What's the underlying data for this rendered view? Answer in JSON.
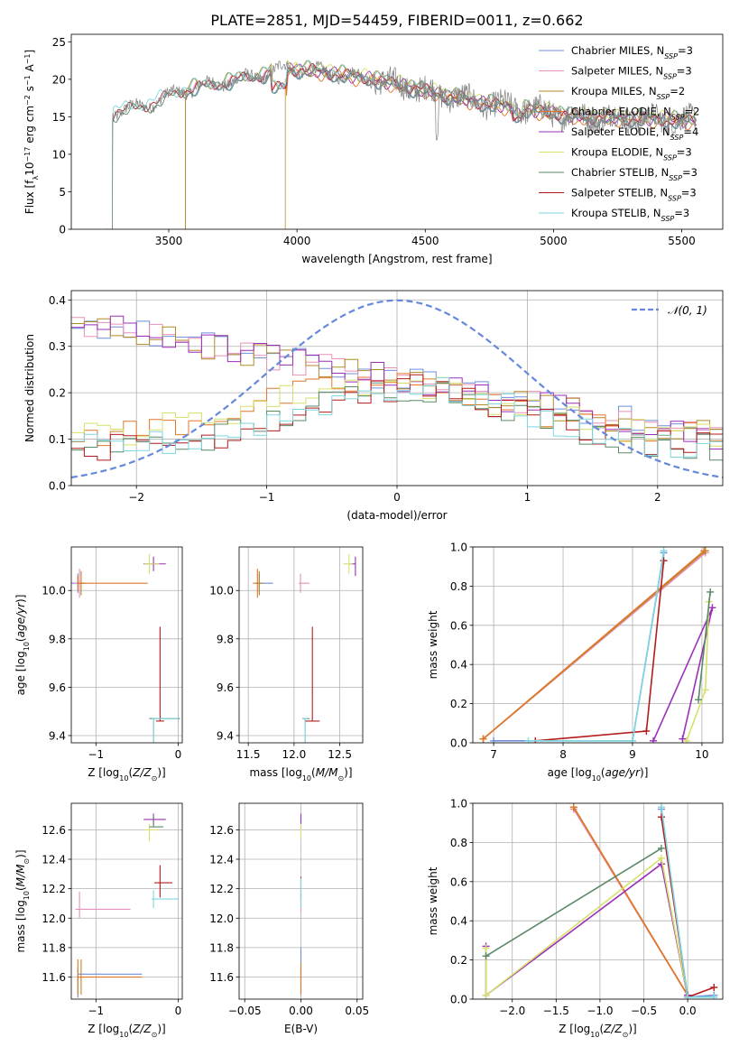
{
  "figure_title": "PLATE=2851, MJD=54459, FIBERID=0011, z=0.662",
  "colors": {
    "Chabrier MILES": "#6f8fdb",
    "Salpeter MILES": "#e590b8",
    "Kroupa MILES": "#b48a28",
    "Chabrier ELODIE": "#e2772a",
    "Salpeter ELODIE": "#9b2fb8",
    "Kroupa ELODIE": "#d6e06a",
    "Chabrier STELIB": "#5a8a68",
    "Salpeter STELIB": "#b21c1c",
    "Kroupa STELIB": "#7fd6df",
    "data": "#808080",
    "gaussian": "#6688dd"
  },
  "chart_data": [
    {
      "id": "spectrum",
      "type": "line",
      "xlabel": "wavelength [Angstrom, rest frame]",
      "ylabel": "Flux [f_λ10^-17 erg cm^-2 s^-1 A^-1]",
      "xlim": [
        3120,
        5660
      ],
      "ylim": [
        0,
        26
      ],
      "xticks": [
        3500,
        4000,
        4500,
        5000,
        5500
      ],
      "yticks": [
        0,
        5,
        10,
        15,
        20,
        25
      ],
      "grid": false,
      "legend_position": "top-right",
      "legend": [
        {
          "name": "Chabrier MILES",
          "nssp": "3"
        },
        {
          "name": "Salpeter MILES",
          "nssp": "3"
        },
        {
          "name": "Kroupa MILES",
          "nssp": "2"
        },
        {
          "name": "Chabrier ELODIE",
          "nssp": "2"
        },
        {
          "name": "Salpeter ELODIE",
          "nssp": "4"
        },
        {
          "name": "Kroupa ELODIE",
          "nssp": "3"
        },
        {
          "name": "Chabrier STELIB",
          "nssp": "3"
        },
        {
          "name": "Salpeter STELIB",
          "nssp": "3"
        },
        {
          "name": "Kroupa STELIB",
          "nssp": "3"
        }
      ],
      "model_starts": {
        "STELIB": 3280,
        "MILES": 3565,
        "ELODIE": 3955
      },
      "continuum": [
        [
          3280,
          15.5
        ],
        [
          3350,
          16
        ],
        [
          3450,
          17
        ],
        [
          3550,
          18.5
        ],
        [
          3700,
          19.5
        ],
        [
          3850,
          20.5
        ],
        [
          3950,
          21.5
        ],
        [
          4100,
          21
        ],
        [
          4300,
          20
        ],
        [
          4500,
          18.5
        ],
        [
          4700,
          17
        ],
        [
          4900,
          16
        ],
        [
          5100,
          15
        ],
        [
          5300,
          14.8
        ],
        [
          5550,
          14.5
        ]
      ]
    },
    {
      "id": "residuals",
      "type": "line",
      "xlabel": "(data-model)/error",
      "ylabel": "Normed distribution",
      "xlim": [
        -2.5,
        2.5
      ],
      "ylim": [
        0,
        0.42
      ],
      "xticks": [
        -2,
        -1,
        0,
        1,
        2
      ],
      "yticks": [
        0.0,
        0.1,
        0.2,
        0.3,
        0.4
      ],
      "grid": true,
      "legend_position": "top-right",
      "gaussian_label": "𝒩(0, 1)",
      "bin_width": 0.1
    },
    {
      "id": "age-vs-z",
      "type": "scatter",
      "xlabel": "Z [log10(Z/Z⊙)]",
      "ylabel": "age [log10(age/yr)]",
      "xlim": [
        -1.3,
        0.05
      ],
      "ylim": [
        9.37,
        10.18
      ],
      "xticks": [
        -1,
        0
      ],
      "yticks": [
        9.4,
        9.6,
        9.8,
        10.0
      ],
      "grid": true,
      "points": [
        {
          "model": "Chabrier MILES",
          "x": -1.22,
          "y": 10.03,
          "xerr": [
            0.08,
            0.08
          ],
          "yerr": [
            0.04,
            0.04
          ]
        },
        {
          "model": "Salpeter MILES",
          "x": -1.2,
          "y": 10.03,
          "xerr": [
            0.06,
            0.06
          ],
          "yerr": [
            0.06,
            0.06
          ]
        },
        {
          "model": "Kroupa MILES",
          "x": -1.18,
          "y": 10.03,
          "xerr": [
            0.05,
            0.05
          ],
          "yerr": [
            0.05,
            0.05
          ]
        },
        {
          "model": "Chabrier ELODIE",
          "x": -1.22,
          "y": 10.03,
          "xerr": [
            0.0,
            0.85
          ],
          "yerr": [
            0.03,
            0.03
          ]
        },
        {
          "model": "Salpeter ELODIE",
          "x": -0.3,
          "y": 10.11,
          "xerr": [
            0.12,
            0.15
          ],
          "yerr": [
            0.03,
            0.03
          ]
        },
        {
          "model": "Kroupa ELODIE",
          "x": -0.35,
          "y": 10.11,
          "xerr": [
            0.06,
            0.12
          ],
          "yerr": [
            0.04,
            0.04
          ]
        },
        {
          "model": "Chabrier STELIB",
          "x": -0.3,
          "y": 9.47,
          "xerr": [
            0.05,
            0.32
          ],
          "yerr": [
            0.42,
            0.0
          ]
        },
        {
          "model": "Salpeter STELIB",
          "x": -0.22,
          "y": 9.46,
          "xerr": [
            0.05,
            0.05
          ],
          "yerr": [
            0.0,
            0.39
          ]
        },
        {
          "model": "Kroupa STELIB",
          "x": -0.3,
          "y": 9.47,
          "xerr": [
            0.02,
            0.3
          ],
          "yerr": [
            0.43,
            0.0
          ]
        }
      ]
    },
    {
      "id": "age-vs-mass",
      "type": "scatter",
      "xlabel": "mass [log10(M/M⊙)]",
      "ylabel": "",
      "xlim": [
        11.4,
        12.75
      ],
      "ylim": [
        9.37,
        10.18
      ],
      "xticks": [
        11.5,
        12.0,
        12.5
      ],
      "yticks": [
        9.4,
        9.6,
        9.8,
        10.0
      ],
      "grid": true,
      "points": [
        {
          "model": "Chabrier MILES",
          "x": 11.62,
          "y": 10.03,
          "xerr": [
            0.04,
            0.15
          ],
          "yerr": [
            0.04,
            0.04
          ]
        },
        {
          "model": "Salpeter MILES",
          "x": 12.07,
          "y": 10.03,
          "xerr": [
            0.02,
            0.1
          ],
          "yerr": [
            0.04,
            0.04
          ]
        },
        {
          "model": "Kroupa MILES",
          "x": 11.62,
          "y": 10.03,
          "xerr": [
            0.04,
            0.04
          ],
          "yerr": [
            0.05,
            0.05
          ]
        },
        {
          "model": "Chabrier ELODIE",
          "x": 11.6,
          "y": 10.03,
          "xerr": [
            0.05,
            0.0
          ],
          "yerr": [
            0.06,
            0.06
          ]
        },
        {
          "model": "Salpeter ELODIE",
          "x": 12.67,
          "y": 10.11,
          "xerr": [
            0.06,
            0.0
          ],
          "yerr": [
            0.05,
            0.03
          ]
        },
        {
          "model": "Kroupa ELODIE",
          "x": 12.6,
          "y": 10.11,
          "xerr": [
            0.06,
            0.04
          ],
          "yerr": [
            0.04,
            0.04
          ]
        },
        {
          "model": "Chabrier STELIB",
          "x": 12.12,
          "y": 9.47,
          "xerr": [
            0.03,
            0.05
          ],
          "yerr": [
            0.43,
            0.0
          ]
        },
        {
          "model": "Salpeter STELIB",
          "x": 12.2,
          "y": 9.46,
          "xerr": [
            0.08,
            0.08
          ],
          "yerr": [
            0.0,
            0.39
          ]
        },
        {
          "model": "Kroupa STELIB",
          "x": 12.12,
          "y": 9.47,
          "xerr": [
            0.03,
            0.03
          ],
          "yerr": [
            0.42,
            0.0
          ]
        }
      ]
    },
    {
      "id": "weight-vs-age",
      "type": "line",
      "xlabel": "age [log10(age/yr)]",
      "ylabel": "mass weight",
      "xlim": [
        6.7,
        10.3
      ],
      "ylim": [
        0,
        1.0
      ],
      "xticks": [
        7,
        8,
        9,
        10
      ],
      "yticks": [
        0.0,
        0.2,
        0.4,
        0.6,
        0.8,
        1.0
      ],
      "grid": true,
      "series": [
        {
          "model": "Chabrier MILES",
          "x": [
            7.0,
            9.0,
            9.45
          ],
          "y": [
            0.01,
            0.01,
            0.97
          ]
        },
        {
          "model": "Salpeter MILES",
          "x": [
            6.85,
            10.05
          ],
          "y": [
            0.02,
            0.97
          ]
        },
        {
          "model": "Kroupa MILES",
          "x": [
            6.85,
            10.05
          ],
          "y": [
            0.02,
            0.98
          ]
        },
        {
          "model": "Chabrier ELODIE",
          "x": [
            6.85,
            10.03
          ],
          "y": [
            0.02,
            0.98
          ]
        },
        {
          "model": "Salpeter ELODIE",
          "x": [
            9.72,
            10.15,
            9.3
          ],
          "y": [
            0.02,
            0.69,
            0.01
          ]
        },
        {
          "model": "Kroupa ELODIE",
          "x": [
            9.78,
            10.05,
            10.1
          ],
          "y": [
            0.01,
            0.27,
            0.72
          ]
        },
        {
          "model": "Chabrier STELIB",
          "x": [
            9.95,
            10.12
          ],
          "y": [
            0.22,
            0.77
          ]
        },
        {
          "model": "Salpeter STELIB",
          "x": [
            7.6,
            9.2,
            9.45
          ],
          "y": [
            0.01,
            0.06,
            0.93
          ]
        },
        {
          "model": "Kroupa STELIB",
          "x": [
            7.5,
            9.0,
            9.45
          ],
          "y": [
            0.01,
            0.01,
            0.98
          ]
        }
      ]
    },
    {
      "id": "mass-vs-z",
      "type": "scatter",
      "xlabel": "Z [log10(Z/Z⊙)]",
      "ylabel": "mass [log10(M/M⊙)]",
      "xlim": [
        -1.3,
        0.05
      ],
      "ylim": [
        11.45,
        12.78
      ],
      "xticks": [
        -1,
        0
      ],
      "yticks": [
        11.6,
        11.8,
        12.0,
        12.2,
        12.4,
        12.6
      ],
      "grid": true,
      "points": [
        {
          "model": "Chabrier MILES",
          "x": -1.22,
          "y": 11.62,
          "xerr": [
            0.0,
            0.78
          ],
          "yerr": [
            0.16,
            0.04
          ]
        },
        {
          "model": "Salpeter MILES",
          "x": -1.2,
          "y": 12.06,
          "xerr": [
            0.05,
            0.62
          ],
          "yerr": [
            0.06,
            0.12
          ]
        },
        {
          "model": "Kroupa MILES",
          "x": -1.18,
          "y": 11.6,
          "xerr": [
            0.05,
            0.05
          ],
          "yerr": [
            0.12,
            0.12
          ]
        },
        {
          "model": "Chabrier ELODIE",
          "x": -1.22,
          "y": 11.6,
          "xerr": [
            0.0,
            0.78
          ],
          "yerr": [
            0.12,
            0.12
          ]
        },
        {
          "model": "Salpeter ELODIE",
          "x": -0.3,
          "y": 12.67,
          "xerr": [
            0.12,
            0.15
          ],
          "yerr": [
            0.04,
            0.04
          ]
        },
        {
          "model": "Kroupa ELODIE",
          "x": -0.35,
          "y": 12.6,
          "xerr": [
            0.06,
            0.12
          ],
          "yerr": [
            0.08,
            0.04
          ]
        },
        {
          "model": "Chabrier STELIB",
          "x": -0.3,
          "y": 12.62,
          "xerr": [
            0.05,
            0.12
          ],
          "yerr": [
            0.0,
            0.07
          ]
        },
        {
          "model": "Salpeter STELIB",
          "x": -0.22,
          "y": 12.24,
          "xerr": [
            0.07,
            0.15
          ],
          "yerr": [
            0.1,
            0.12
          ]
        },
        {
          "model": "Kroupa STELIB",
          "x": -0.3,
          "y": 12.13,
          "xerr": [
            0.02,
            0.3
          ],
          "yerr": [
            0.06,
            0.06
          ]
        }
      ]
    },
    {
      "id": "mass-vs-ebv",
      "type": "scatter",
      "xlabel": "E(B-V)",
      "ylabel": "",
      "xlim": [
        -0.055,
        0.055
      ],
      "ylim": [
        11.45,
        12.78
      ],
      "xticks": [
        -0.05,
        0.0,
        0.05
      ],
      "yticks": [
        11.6,
        11.8,
        12.0,
        12.2,
        12.4,
        12.6
      ],
      "grid": true,
      "points": [
        {
          "model": "Chabrier MILES",
          "x": 0.0,
          "y": 11.62,
          "xerr": [
            0.0,
            0.0
          ],
          "yerr": [
            0.04,
            0.18
          ]
        },
        {
          "model": "Salpeter MILES",
          "x": 0.0,
          "y": 12.06,
          "xerr": [
            0.0,
            0.0
          ],
          "yerr": [
            0.02,
            0.1
          ]
        },
        {
          "model": "Kroupa MILES",
          "x": 0.0,
          "y": 11.6,
          "xerr": [
            0.0,
            0.0
          ],
          "yerr": [
            0.1,
            0.1
          ]
        },
        {
          "model": "Chabrier ELODIE",
          "x": 0.0,
          "y": 11.6,
          "xerr": [
            0.0,
            0.0
          ],
          "yerr": [
            0.12,
            0.06
          ]
        },
        {
          "model": "Salpeter ELODIE",
          "x": 0.0,
          "y": 12.67,
          "xerr": [
            0.0,
            0.0
          ],
          "yerr": [
            0.06,
            0.04
          ]
        },
        {
          "model": "Kroupa ELODIE",
          "x": 0.0,
          "y": 12.6,
          "xerr": [
            0.0,
            0.0
          ],
          "yerr": [
            0.06,
            0.04
          ]
        },
        {
          "model": "Chabrier STELIB",
          "x": 0.0,
          "y": 12.12,
          "xerr": [
            0.0,
            0.0
          ],
          "yerr": [
            0.05,
            0.05
          ]
        },
        {
          "model": "Salpeter STELIB",
          "x": 0.0,
          "y": 12.24,
          "xerr": [
            0.0,
            0.0
          ],
          "yerr": [
            0.1,
            0.04
          ]
        },
        {
          "model": "Kroupa STELIB",
          "x": 0.0,
          "y": 12.13,
          "xerr": [
            0.0,
            0.0
          ],
          "yerr": [
            0.06,
            0.14
          ]
        }
      ]
    },
    {
      "id": "weight-vs-z",
      "type": "line",
      "xlabel": "Z [log10(Z/Z⊙)]",
      "ylabel": "mass weight",
      "xlim": [
        -2.45,
        0.4
      ],
      "ylim": [
        0,
        1.0
      ],
      "xticks": [
        -2.0,
        -1.5,
        -1.0,
        -0.5,
        0.0
      ],
      "yticks": [
        0.0,
        0.2,
        0.4,
        0.6,
        0.8,
        1.0
      ],
      "grid": true,
      "series": [
        {
          "model": "Chabrier MILES",
          "x": [
            -0.3,
            0.0,
            0.3
          ],
          "y": [
            0.97,
            0.01,
            0.02
          ]
        },
        {
          "model": "Salpeter MILES",
          "x": [
            -1.3,
            0.0
          ],
          "y": [
            0.97,
            0.02
          ]
        },
        {
          "model": "Kroupa MILES",
          "x": [
            -1.3,
            0.0
          ],
          "y": [
            0.98,
            0.02
          ]
        },
        {
          "model": "Chabrier ELODIE",
          "x": [
            -1.3,
            0.0
          ],
          "y": [
            0.98,
            0.02
          ]
        },
        {
          "model": "Salpeter ELODIE",
          "x": [
            -2.3,
            -2.3,
            -0.3,
            0.0,
            0.0
          ],
          "y": [
            0.27,
            0.02,
            0.69,
            0.01,
            0.02
          ]
        },
        {
          "model": "Kroupa ELODIE",
          "x": [
            -2.3,
            -2.3,
            -0.3,
            0.0
          ],
          "y": [
            0.26,
            0.02,
            0.72,
            0.01
          ]
        },
        {
          "model": "Chabrier STELIB",
          "x": [
            -2.3,
            -0.3
          ],
          "y": [
            0.22,
            0.77
          ]
        },
        {
          "model": "Salpeter STELIB",
          "x": [
            -0.3,
            0.0,
            0.3
          ],
          "y": [
            0.93,
            0.01,
            0.06
          ]
        },
        {
          "model": "Kroupa STELIB",
          "x": [
            -0.3,
            0.0,
            0.3
          ],
          "y": [
            0.98,
            0.01,
            0.01
          ]
        }
      ]
    }
  ]
}
